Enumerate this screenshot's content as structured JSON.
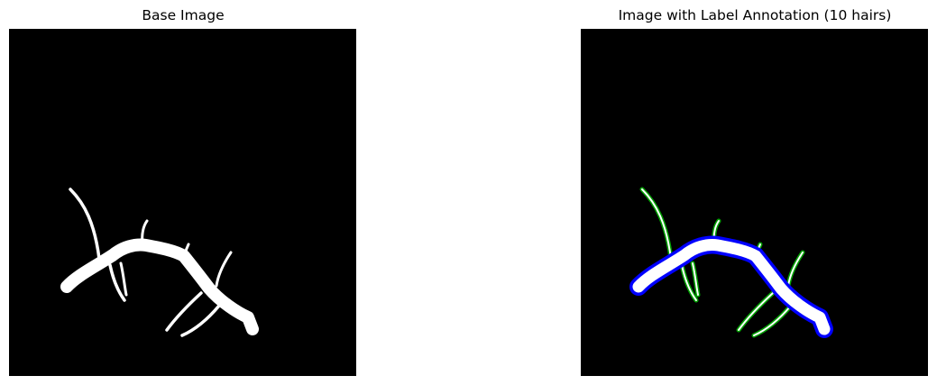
{
  "figure": {
    "background": "#ffffff",
    "panels": [
      {
        "title": "Base Image",
        "background_color": "#000000",
        "foreground_color": "#ffffff"
      },
      {
        "title": "Image with Label Annotation (10 hairs)",
        "background_color": "#000000",
        "foreground_color": "#ffffff",
        "root_outline_color": "#0000ff",
        "hair_outline_color": "#00a000",
        "hair_count": 10
      }
    ]
  }
}
